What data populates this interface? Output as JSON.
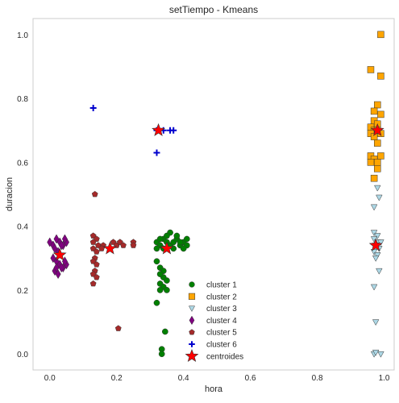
{
  "chart_data": {
    "type": "scatter",
    "title": "setTiempo - Kmeans",
    "xlabel": "hora",
    "ylabel": "duracion",
    "xlim": [
      -0.05,
      1.03
    ],
    "ylim": [
      -0.05,
      1.05
    ],
    "x_ticks": [
      "0.0",
      "0.2",
      "0.4",
      "0.6",
      "0.8",
      "1.0"
    ],
    "y_ticks": [
      "0.0",
      "0.2",
      "0.4",
      "0.6",
      "0.8",
      "1.0"
    ],
    "grid": false,
    "legend_placement": "lower-center",
    "series": [
      {
        "name": "cluster 1",
        "marker": "circle",
        "color": "#008000",
        "points": [
          [
            0.32,
            0.35
          ],
          [
            0.33,
            0.34
          ],
          [
            0.34,
            0.36
          ],
          [
            0.35,
            0.35
          ],
          [
            0.36,
            0.34
          ],
          [
            0.37,
            0.35
          ],
          [
            0.38,
            0.36
          ],
          [
            0.39,
            0.34
          ],
          [
            0.4,
            0.35
          ],
          [
            0.41,
            0.34
          ],
          [
            0.32,
            0.33
          ],
          [
            0.36,
            0.38
          ],
          [
            0.38,
            0.37
          ],
          [
            0.4,
            0.33
          ],
          [
            0.41,
            0.36
          ],
          [
            0.35,
            0.37
          ],
          [
            0.33,
            0.36
          ],
          [
            0.34,
            0.33
          ],
          [
            0.37,
            0.33
          ],
          [
            0.39,
            0.35
          ],
          [
            0.32,
            0.29
          ],
          [
            0.33,
            0.27
          ],
          [
            0.34,
            0.26
          ],
          [
            0.34,
            0.24
          ],
          [
            0.35,
            0.23
          ],
          [
            0.33,
            0.22
          ],
          [
            0.34,
            0.21
          ],
          [
            0.33,
            0.2
          ],
          [
            0.35,
            0.2
          ],
          [
            0.32,
            0.16
          ],
          [
            0.345,
            0.07
          ],
          [
            0.335,
            0.015
          ],
          [
            0.335,
            0.0
          ],
          [
            0.33,
            0.25
          ]
        ]
      },
      {
        "name": "cluster 2",
        "marker": "square",
        "color": "#FFA500",
        "points": [
          [
            0.99,
            1.0
          ],
          [
            0.96,
            0.89
          ],
          [
            0.99,
            0.87
          ],
          [
            0.98,
            0.78
          ],
          [
            0.97,
            0.76
          ],
          [
            0.99,
            0.75
          ],
          [
            0.97,
            0.73
          ],
          [
            0.98,
            0.72
          ],
          [
            0.96,
            0.71
          ],
          [
            0.97,
            0.7
          ],
          [
            0.98,
            0.7
          ],
          [
            0.96,
            0.69
          ],
          [
            0.97,
            0.68
          ],
          [
            0.99,
            0.69
          ],
          [
            0.98,
            0.66
          ],
          [
            0.96,
            0.62
          ],
          [
            0.97,
            0.61
          ],
          [
            0.98,
            0.6
          ],
          [
            0.96,
            0.6
          ],
          [
            0.99,
            0.62
          ],
          [
            0.98,
            0.58
          ],
          [
            0.97,
            0.55
          ]
        ]
      },
      {
        "name": "cluster 3",
        "marker": "triangle_down",
        "color": "#ADD8E6",
        "points": [
          [
            0.98,
            0.52
          ],
          [
            0.985,
            0.49
          ],
          [
            0.97,
            0.46
          ],
          [
            0.97,
            0.38
          ],
          [
            0.98,
            0.37
          ],
          [
            0.97,
            0.36
          ],
          [
            0.98,
            0.35
          ],
          [
            0.99,
            0.35
          ],
          [
            0.975,
            0.34
          ],
          [
            0.985,
            0.33
          ],
          [
            0.97,
            0.32
          ],
          [
            0.98,
            0.31
          ],
          [
            0.975,
            0.3
          ],
          [
            0.985,
            0.26
          ],
          [
            0.97,
            0.21
          ],
          [
            0.975,
            0.1
          ],
          [
            0.97,
            0.0
          ],
          [
            0.975,
            0.005
          ],
          [
            0.99,
            0.0
          ]
        ]
      },
      {
        "name": "cluster 4",
        "marker": "thin_diamond",
        "color": "#800080",
        "points": [
          [
            0.0,
            0.35
          ],
          [
            0.01,
            0.34
          ],
          [
            0.02,
            0.36
          ],
          [
            0.03,
            0.35
          ],
          [
            0.04,
            0.34
          ],
          [
            0.05,
            0.35
          ],
          [
            0.015,
            0.33
          ],
          [
            0.025,
            0.32
          ],
          [
            0.035,
            0.34
          ],
          [
            0.045,
            0.36
          ],
          [
            0.01,
            0.3
          ],
          [
            0.02,
            0.29
          ],
          [
            0.03,
            0.28
          ],
          [
            0.04,
            0.27
          ],
          [
            0.05,
            0.28
          ],
          [
            0.015,
            0.26
          ],
          [
            0.025,
            0.25
          ],
          [
            0.035,
            0.27
          ],
          [
            0.045,
            0.29
          ],
          [
            0.02,
            0.27
          ]
        ]
      },
      {
        "name": "cluster 5",
        "marker": "pentagon",
        "color": "#A52A2A",
        "points": [
          [
            0.135,
            0.5
          ],
          [
            0.13,
            0.37
          ],
          [
            0.14,
            0.36
          ],
          [
            0.13,
            0.35
          ],
          [
            0.145,
            0.34
          ],
          [
            0.13,
            0.33
          ],
          [
            0.14,
            0.32
          ],
          [
            0.135,
            0.3
          ],
          [
            0.13,
            0.29
          ],
          [
            0.14,
            0.28
          ],
          [
            0.135,
            0.26
          ],
          [
            0.13,
            0.25
          ],
          [
            0.14,
            0.24
          ],
          [
            0.13,
            0.22
          ],
          [
            0.16,
            0.34
          ],
          [
            0.155,
            0.33
          ],
          [
            0.19,
            0.35
          ],
          [
            0.2,
            0.34
          ],
          [
            0.21,
            0.35
          ],
          [
            0.22,
            0.34
          ],
          [
            0.25,
            0.35
          ],
          [
            0.25,
            0.34
          ],
          [
            0.205,
            0.08
          ]
        ]
      },
      {
        "name": "cluster 6",
        "marker": "plus",
        "color": "#0000CD",
        "points": [
          [
            0.13,
            0.77
          ],
          [
            0.32,
            0.7
          ],
          [
            0.34,
            0.7
          ],
          [
            0.36,
            0.7
          ],
          [
            0.37,
            0.7
          ],
          [
            0.32,
            0.63
          ]
        ]
      },
      {
        "name": "centroides",
        "marker": "star",
        "color": "#FF0000",
        "points": [
          [
            0.325,
            0.7
          ],
          [
            0.98,
            0.7
          ],
          [
            0.975,
            0.34
          ],
          [
            0.03,
            0.31
          ],
          [
            0.18,
            0.33
          ],
          [
            0.35,
            0.33
          ]
        ]
      }
    ]
  }
}
